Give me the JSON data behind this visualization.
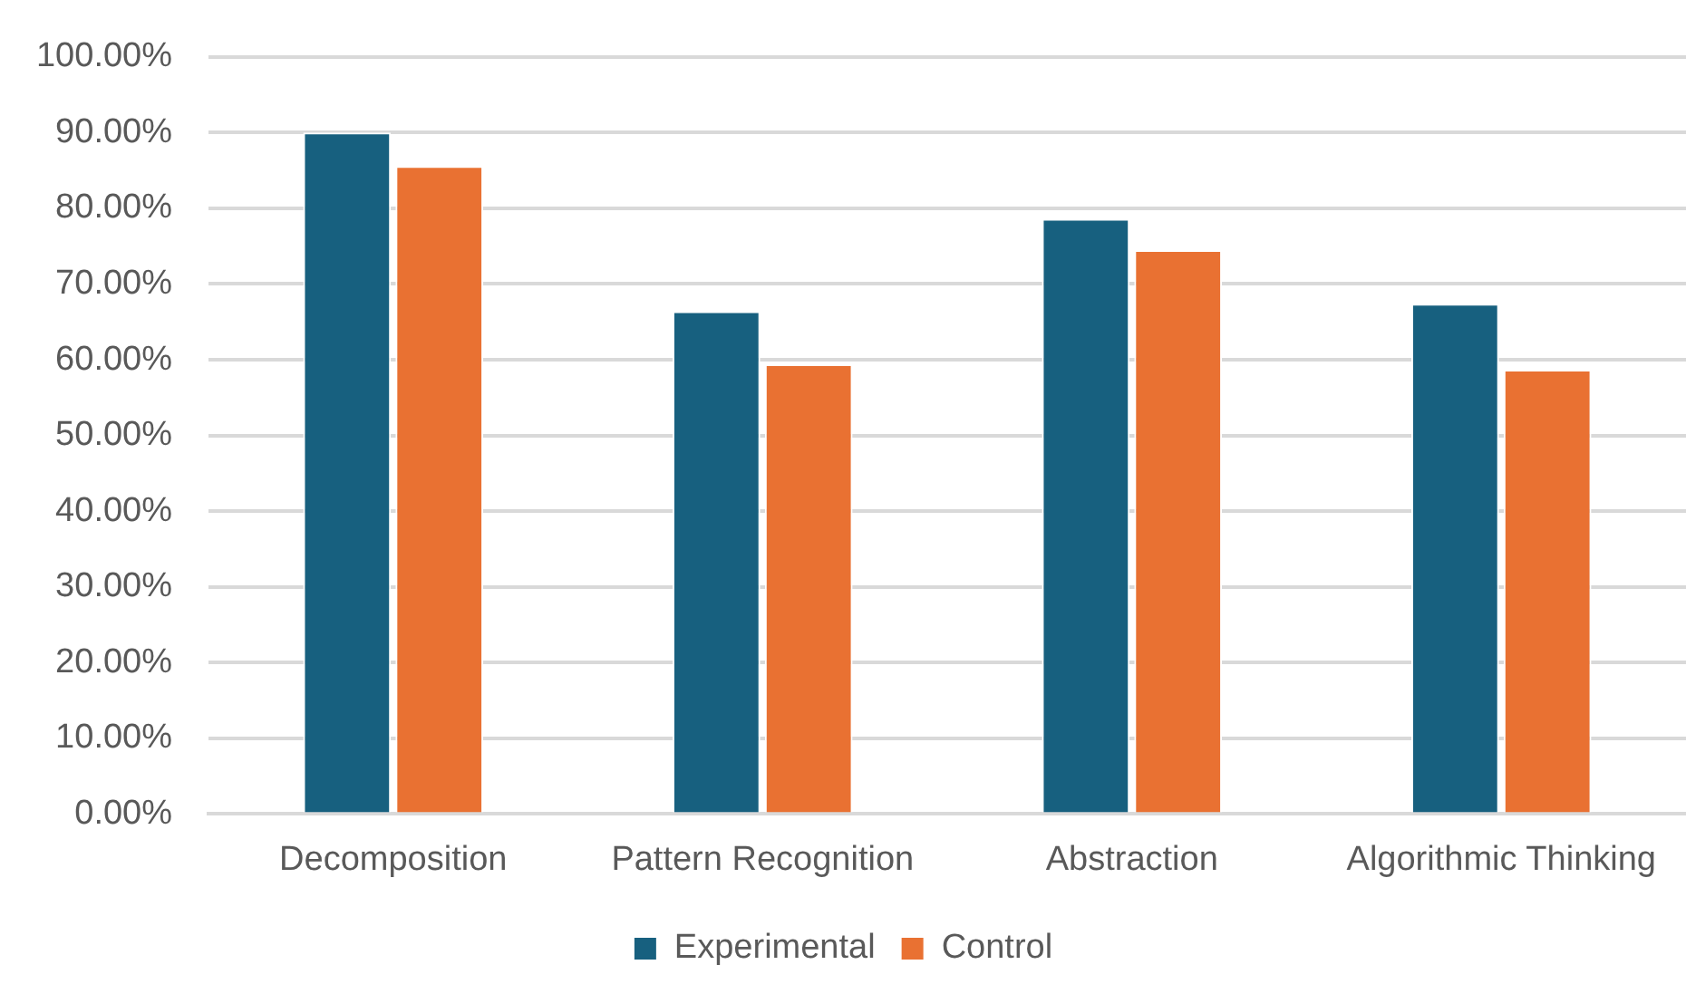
{
  "chart_data": {
    "type": "bar",
    "categories": [
      "Decomposition",
      "Pattern Recognition",
      "Abstraction",
      "Algorithmic Thinking"
    ],
    "series": [
      {
        "name": "Experimental",
        "color": "#17607f",
        "values": [
          90.0,
          66.4,
          78.6,
          67.4
        ]
      },
      {
        "name": "Control",
        "color": "#e97132",
        "values": [
          85.6,
          59.4,
          74.5,
          58.7
        ]
      }
    ],
    "ylim": [
      0,
      100
    ],
    "yticks": [
      {
        "value": 0,
        "label": "0.00%"
      },
      {
        "value": 10,
        "label": "10.00%"
      },
      {
        "value": 20,
        "label": "20.00%"
      },
      {
        "value": 30,
        "label": "30.00%"
      },
      {
        "value": 40,
        "label": "40.00%"
      },
      {
        "value": 50,
        "label": "50.00%"
      },
      {
        "value": 60,
        "label": "60.00%"
      },
      {
        "value": 70,
        "label": "70.00%"
      },
      {
        "value": 80,
        "label": "80.00%"
      },
      {
        "value": 90,
        "label": "90.00%"
      },
      {
        "value": 100,
        "label": "100.00%"
      }
    ],
    "grid": "y",
    "legend": "bottom"
  }
}
